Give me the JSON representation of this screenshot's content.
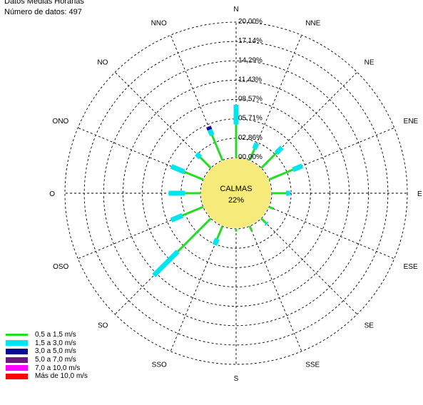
{
  "header": {
    "line1": "Datos Medias Horarias",
    "line2": "Número de datos: 497"
  },
  "chart_data": {
    "type": "wind-rose",
    "directions": [
      "N",
      "NNE",
      "NE",
      "ENE",
      "E",
      "ESE",
      "SE",
      "SSE",
      "S",
      "SSO",
      "SO",
      "OSO",
      "O",
      "ONO",
      "NO",
      "NNO"
    ],
    "ring_labels": [
      "00,00%",
      "02,86%",
      "05,71%",
      "08,57%",
      "11,43%",
      "14,29%",
      "17,14%",
      "20,00%"
    ],
    "rmax_percent": 20,
    "calm": {
      "label": "CALMAS",
      "value": "22%",
      "percent": 22
    },
    "speed_classes": [
      {
        "label": "0,5 a 1,5 m/s",
        "color": "#22dd22"
      },
      {
        "label": "1,5 a 3,0 m/s",
        "color": "#00e5ee"
      },
      {
        "label": "3,0 a 5,0 m/s",
        "color": "#0a0a8c"
      },
      {
        "label": "5,0 a 7,0 m/s",
        "color": "#6a1a7a"
      },
      {
        "label": "7,0 a 10,0 m/s",
        "color": "#ff00ff"
      },
      {
        "label": "Más de 10,0 m/s",
        "color": "#ff0000"
      }
    ],
    "frequencies_percent": {
      "N": [
        4.9,
        2.9,
        0,
        0,
        0,
        0
      ],
      "NNE": [
        1.8,
        0.9,
        0,
        0,
        0,
        0
      ],
      "NE": [
        3.1,
        1.2,
        0,
        0,
        0,
        0
      ],
      "ENE": [
        3.8,
        1.5,
        0,
        0,
        0,
        0
      ],
      "E": [
        2.1,
        0.6,
        0,
        0,
        0,
        0
      ],
      "ESE": [
        0.7,
        0.0,
        0,
        0,
        0,
        0
      ],
      "SE": [
        1.0,
        0.2,
        0,
        0,
        0,
        0
      ],
      "SSE": [
        0.8,
        0.0,
        0,
        0,
        0,
        0
      ],
      "S": [
        0.4,
        0.0,
        0,
        0,
        0,
        0
      ],
      "SSO": [
        2.0,
        1.0,
        0,
        0,
        0,
        0
      ],
      "SO": [
        6.9,
        5.0,
        0,
        0,
        0,
        0
      ],
      "OSO": [
        3.3,
        1.8,
        0,
        0,
        0,
        0
      ],
      "O": [
        2.3,
        2.4,
        0,
        0,
        0,
        0
      ],
      "ONO": [
        3.0,
        2.1,
        0,
        0,
        0,
        0
      ],
      "NO": [
        2.2,
        0.8,
        0,
        0,
        0,
        0
      ],
      "NNO": [
        4.0,
        0.9,
        0.4,
        0.1,
        0,
        0
      ]
    }
  }
}
